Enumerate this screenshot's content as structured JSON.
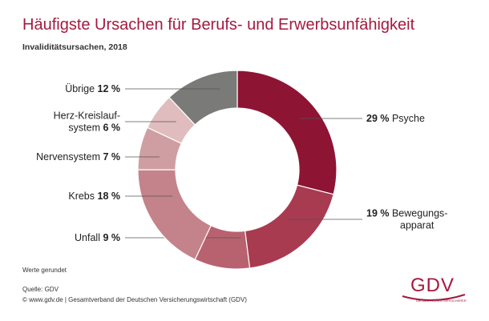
{
  "chart_data": {
    "type": "pie",
    "title": "Häufigste Ursachen für Berufs- und Erwerbsunfähigkeit",
    "subtitle": "Invaliditätsursachen, 2018",
    "unit": "%",
    "slices": [
      {
        "name": "Psyche",
        "value": 29,
        "color": "#8e1434",
        "label_lines": [
          "Psyche"
        ]
      },
      {
        "name": "Bewegungsapparat",
        "value": 19,
        "color": "#a83b50",
        "label_lines": [
          "Bewegungs-",
          "apparat"
        ]
      },
      {
        "name": "Unfall",
        "value": 9,
        "color": "#b9626f",
        "label_lines": [
          "Unfall"
        ]
      },
      {
        "name": "Krebs",
        "value": 18,
        "color": "#c4828a",
        "label_lines": [
          "Krebs"
        ]
      },
      {
        "name": "Nervensystem",
        "value": 7,
        "color": "#cf9ea2",
        "label_lines": [
          "Nervensystem"
        ]
      },
      {
        "name": "Herz-Kreislaufsystem",
        "value": 6,
        "color": "#e0bcbe",
        "label_lines": [
          "Herz-Kreislauf-",
          "system"
        ]
      },
      {
        "name": "Übrige",
        "value": 12,
        "color": "#7a7a78",
        "label_lines": [
          "Übrige"
        ]
      }
    ],
    "footnote": "Werte gerundet"
  },
  "source": {
    "line1": "Quelle: GDV",
    "line2": "© www.gdv.de | Gesamtverband der Deutschen Versicherungswirtschaft (GDV)"
  },
  "logo": {
    "text": "GDV",
    "tagline": "DIE DEUTSCHEN VERSICHERER"
  }
}
